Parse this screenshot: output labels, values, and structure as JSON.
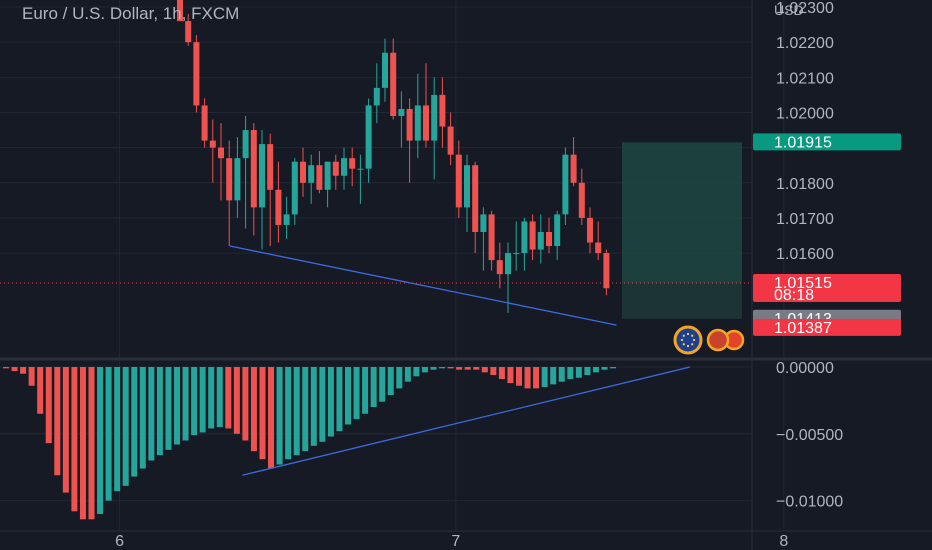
{
  "header": {
    "title": "Euro / U.S. Dollar, 1h, FXCM",
    "currency": "USD"
  },
  "colors": {
    "bg": "#161a25",
    "grid": "#232733",
    "up": "#26a69a",
    "down": "#ef5350",
    "trendline": "#3e6ae0",
    "profit_zone": "#1f4e47",
    "text": "#b2b5be"
  },
  "chart_data": [
    {
      "type": "candlestick",
      "title": "Euro / U.S. Dollar, 1h, FXCM",
      "ylabel": "USD",
      "ylim": [
        1.0131,
        1.0232
      ],
      "price_ticks": [
        "1.02300",
        "1.02200",
        "1.02100",
        "1.02000",
        "1.01800",
        "1.01700",
        "1.01600"
      ],
      "x_ticks": [
        {
          "label": "6",
          "bar": 3
        },
        {
          "label": "7",
          "bar": 44
        },
        {
          "label": "8",
          "bar": 84
        }
      ],
      "ohlc": [
        [
          1.0232,
          1.0235,
          1.0226,
          1.0226
        ],
        [
          1.0226,
          1.0228,
          1.0219,
          1.022
        ],
        [
          1.022,
          1.0222,
          1.02,
          1.0202
        ],
        [
          1.0202,
          1.0204,
          1.019,
          1.0192
        ],
        [
          1.0192,
          1.0198,
          1.018,
          1.019
        ],
        [
          1.019,
          1.0197,
          1.0175,
          1.0187
        ],
        [
          1.0187,
          1.0192,
          1.0162,
          1.0175
        ],
        [
          1.0175,
          1.0193,
          1.017,
          1.0187
        ],
        [
          1.0187,
          1.0199,
          1.0167,
          1.0195
        ],
        [
          1.0195,
          1.0197,
          1.0165,
          1.0173
        ],
        [
          1.0173,
          1.0195,
          1.0161,
          1.0191
        ],
        [
          1.0191,
          1.0194,
          1.0162,
          1.0178
        ],
        [
          1.0178,
          1.0186,
          1.0163,
          1.0168
        ],
        [
          1.0168,
          1.0176,
          1.0164,
          1.0171
        ],
        [
          1.0171,
          1.0187,
          1.0168,
          1.0186
        ],
        [
          1.0186,
          1.019,
          1.0176,
          1.018
        ],
        [
          1.018,
          1.0188,
          1.0174,
          1.0185
        ],
        [
          1.0185,
          1.0189,
          1.0177,
          1.0178
        ],
        [
          1.0178,
          1.0186,
          1.0173,
          1.0186
        ],
        [
          1.0186,
          1.0188,
          1.0178,
          1.0182
        ],
        [
          1.0182,
          1.019,
          1.0178,
          1.0187
        ],
        [
          1.0187,
          1.019,
          1.0179,
          1.0184
        ],
        [
          1.0184,
          1.0188,
          1.0174,
          1.0184
        ],
        [
          1.0184,
          1.0204,
          1.018,
          1.0202
        ],
        [
          1.0202,
          1.0214,
          1.0197,
          1.0207
        ],
        [
          1.0207,
          1.0221,
          1.0203,
          1.0217
        ],
        [
          1.0217,
          1.0221,
          1.0198,
          1.0199
        ],
        [
          1.0199,
          1.0206,
          1.019,
          1.0201
        ],
        [
          1.0201,
          1.0204,
          1.018,
          1.0192
        ],
        [
          1.0192,
          1.0211,
          1.0187,
          1.0202
        ],
        [
          1.0202,
          1.0214,
          1.019,
          1.0192
        ],
        [
          1.0192,
          1.021,
          1.0181,
          1.0205
        ],
        [
          1.0205,
          1.021,
          1.019,
          1.0196
        ],
        [
          1.0196,
          1.02,
          1.0185,
          1.0188
        ],
        [
          1.0188,
          1.0192,
          1.017,
          1.0173
        ],
        [
          1.0173,
          1.0188,
          1.0166,
          1.0185
        ],
        [
          1.0185,
          1.0186,
          1.016,
          1.0166
        ],
        [
          1.0166,
          1.0173,
          1.0155,
          1.0171
        ],
        [
          1.0171,
          1.0172,
          1.0155,
          1.0158
        ],
        [
          1.0158,
          1.0163,
          1.015,
          1.0154
        ],
        [
          1.0154,
          1.0163,
          1.0143,
          1.016
        ],
        [
          1.016,
          1.0169,
          1.0155,
          1.016
        ],
        [
          1.016,
          1.017,
          1.0155,
          1.0169
        ],
        [
          1.0169,
          1.0171,
          1.0158,
          1.0161
        ],
        [
          1.0161,
          1.0171,
          1.0157,
          1.0166
        ],
        [
          1.0166,
          1.017,
          1.016,
          1.0162
        ],
        [
          1.0162,
          1.0172,
          1.0158,
          1.0171
        ],
        [
          1.0171,
          1.019,
          1.0168,
          1.0188
        ],
        [
          1.0188,
          1.0193,
          1.0179,
          1.018
        ],
        [
          1.018,
          1.0184,
          1.0168,
          1.017
        ],
        [
          1.017,
          1.0173,
          1.016,
          1.0163
        ],
        [
          1.0163,
          1.0169,
          1.0158,
          1.016
        ],
        [
          1.016,
          1.0161,
          1.0148,
          1.015
        ]
      ]
    },
    {
      "type": "bar",
      "title": "",
      "ylim": [
        -0.0122,
        0.0003
      ],
      "y_ticks": [
        "0.00000",
        "−0.00500",
        "−0.01000"
      ],
      "values": [
        -0.0001,
        -0.0003,
        -0.0005,
        -0.0014,
        -0.0035,
        -0.0057,
        -0.0081,
        -0.0094,
        -0.0108,
        -0.0114,
        -0.0114,
        -0.011,
        -0.01,
        -0.0093,
        -0.0089,
        -0.0082,
        -0.0076,
        -0.007,
        -0.0066,
        -0.0062,
        -0.0058,
        -0.0055,
        -0.0051,
        -0.0049,
        -0.0046,
        -0.0045,
        -0.0046,
        -0.005,
        -0.0055,
        -0.0063,
        -0.0069,
        -0.0076,
        -0.0073,
        -0.0069,
        -0.0066,
        -0.0063,
        -0.0059,
        -0.0056,
        -0.0052,
        -0.0048,
        -0.0043,
        -0.0039,
        -0.0035,
        -0.003,
        -0.0026,
        -0.0021,
        -0.0016,
        -0.0011,
        -0.0007,
        -0.0004,
        -0.0002,
        -0.0001,
        -0.0001,
        -0.0002,
        -0.0002,
        -0.0002,
        -0.0004,
        -0.0006,
        -0.0009,
        -0.0012,
        -0.0014,
        -0.0016,
        -0.0016,
        -0.0015,
        -0.0013,
        -0.0011,
        -0.0009,
        -0.0008,
        -0.0006,
        -0.0004,
        -0.0002,
        -0.0001
      ]
    }
  ],
  "tags": [
    {
      "label": "1.01915",
      "color": "#089981"
    },
    {
      "label": "1.01515",
      "sub": "08:18",
      "color": "#f23645"
    },
    {
      "label": "1.01413",
      "color": "#787b86"
    },
    {
      "label": "1.01387",
      "color": "#f23645"
    }
  ]
}
